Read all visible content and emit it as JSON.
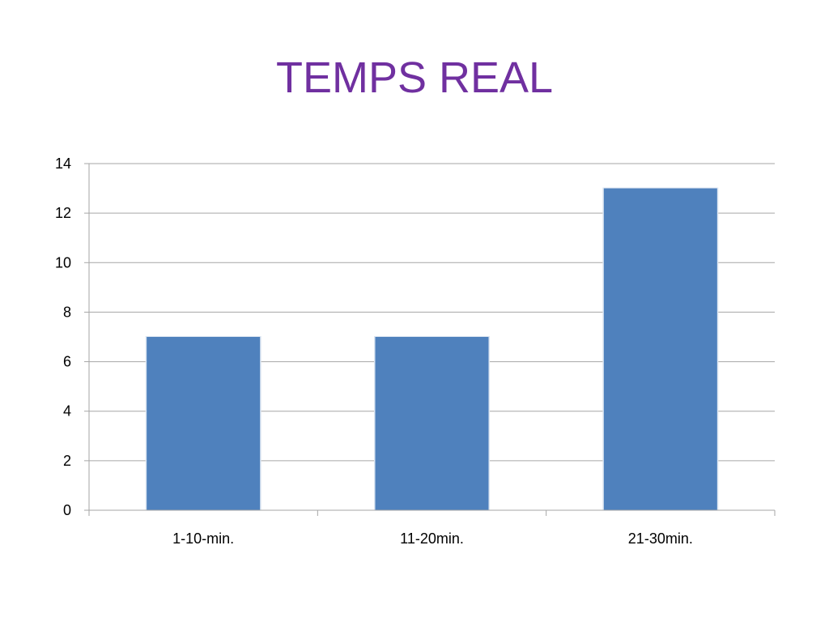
{
  "chart_data": {
    "type": "bar",
    "title": "TEMPS REAL",
    "categories": [
      "1-10-min.",
      "11-20min.",
      "21-30min."
    ],
    "values": [
      7,
      7,
      13
    ],
    "ylim": [
      0,
      14
    ],
    "yticks": [
      "0",
      "2",
      "4",
      "6",
      "8",
      "10",
      "12",
      "14"
    ],
    "grid": true,
    "legend": "none",
    "colors": {
      "bar": "#4f81bd",
      "title": "#7030a0",
      "grid": "#a6a6a6"
    }
  }
}
